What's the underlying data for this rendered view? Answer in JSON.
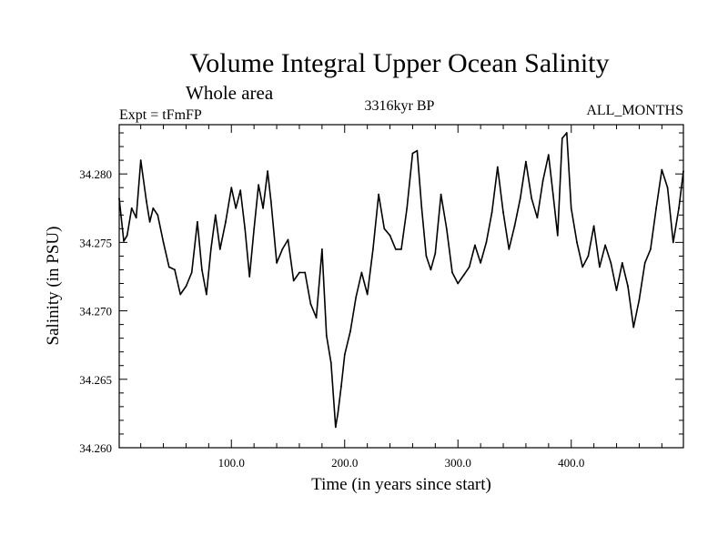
{
  "chart_data": {
    "type": "line",
    "title": "Volume Integral Upper Ocean Salinity",
    "subtitle": "Whole area",
    "left_label": "Expt = tFmFP",
    "center_label": "3316kyr BP",
    "right_label": "ALL_MONTHS",
    "xlabel": "Time (in years since start)",
    "ylabel": "Salinity (in PSU)",
    "xlim": [
      1,
      499
    ],
    "ylim": [
      34.26,
      34.2836
    ],
    "x_ticks": [
      100,
      200,
      300,
      400
    ],
    "x_tick_labels": [
      "100.0",
      "200.0",
      "300.0",
      "400.0"
    ],
    "y_ticks": [
      34.26,
      34.265,
      34.27,
      34.275,
      34.28
    ],
    "y_tick_labels": [
      "34.260",
      "34.265",
      "34.270",
      "34.275",
      "34.280"
    ],
    "series": [
      {
        "name": "salinity",
        "x": [
          1,
          5,
          8,
          12,
          16,
          20,
          25,
          28,
          31,
          35,
          40,
          45,
          50,
          55,
          60,
          65,
          70,
          74,
          78,
          82,
          86,
          90,
          95,
          100,
          104,
          108,
          112,
          116,
          120,
          124,
          128,
          132,
          135,
          140,
          145,
          150,
          155,
          160,
          165,
          170,
          175,
          180,
          184,
          188,
          192,
          194,
          197,
          200,
          205,
          210,
          215,
          220,
          225,
          230,
          235,
          240,
          245,
          250,
          255,
          260,
          264,
          268,
          272,
          276,
          280,
          285,
          290,
          295,
          300,
          305,
          310,
          315,
          320,
          325,
          330,
          335,
          340,
          345,
          350,
          355,
          360,
          365,
          370,
          375,
          380,
          384,
          388,
          392,
          396,
          400,
          405,
          410,
          415,
          420,
          425,
          430,
          435,
          440,
          445,
          450,
          455,
          460,
          465,
          470,
          475,
          480,
          485,
          490,
          495,
          499
        ],
        "values": [
          34.2782,
          34.2751,
          34.2755,
          34.2775,
          34.2768,
          34.281,
          34.278,
          34.2765,
          34.2775,
          34.277,
          34.275,
          34.2732,
          34.273,
          34.2712,
          34.2718,
          34.2728,
          34.2765,
          34.273,
          34.2712,
          34.2745,
          34.277,
          34.2745,
          34.2765,
          34.279,
          34.2775,
          34.2788,
          34.276,
          34.2725,
          34.276,
          34.2792,
          34.2775,
          34.2802,
          34.278,
          34.2735,
          34.2745,
          34.2752,
          34.2722,
          34.2728,
          34.2728,
          34.2705,
          34.2695,
          34.2745,
          34.2682,
          34.2662,
          34.2615,
          34.2625,
          34.2645,
          34.2668,
          34.2685,
          34.271,
          34.2728,
          34.2712,
          34.2745,
          34.2785,
          34.276,
          34.2755,
          34.2745,
          34.2745,
          34.2775,
          34.2815,
          34.2817,
          34.2775,
          34.274,
          34.273,
          34.2742,
          34.2785,
          34.276,
          34.2728,
          34.272,
          34.2726,
          34.2732,
          34.2748,
          34.2735,
          34.275,
          34.2772,
          34.2805,
          34.2772,
          34.2745,
          34.2762,
          34.2782,
          34.2809,
          34.2782,
          34.2768,
          34.2795,
          34.2814,
          34.2785,
          34.2755,
          34.2826,
          34.283,
          34.2775,
          34.275,
          34.2732,
          34.274,
          34.2762,
          34.2732,
          34.2748,
          34.2735,
          34.2715,
          34.2735,
          34.2718,
          34.2688,
          34.2708,
          34.2735,
          34.2745,
          34.2775,
          34.2803,
          34.279,
          34.275,
          34.2775,
          34.2802
        ]
      }
    ]
  }
}
